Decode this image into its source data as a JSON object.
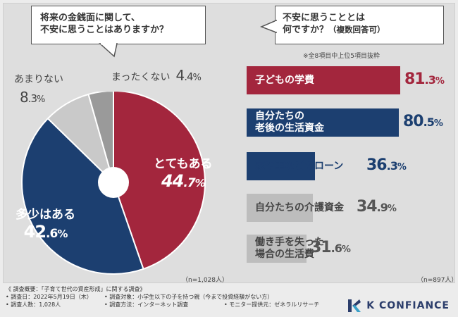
{
  "question_left": {
    "line1": "将来の金銭面に関して、",
    "line2": "不安に思うことはありますか？"
  },
  "question_right": {
    "line1": "不安に思うこととは",
    "line2_main": "何ですか？",
    "line2_sub": "（複数回答可）"
  },
  "note_top": "※全8項目中上位5項目抜粋",
  "chart_data": [
    {
      "type": "pie",
      "title": "将来の金銭面に関して、不安に思うことはありますか？",
      "slices": [
        {
          "label": "とてもある",
          "value": 44.7,
          "color": "#a3263d"
        },
        {
          "label": "多少はある",
          "value": 42.6,
          "color": "#1c3f70"
        },
        {
          "label": "あまりない",
          "value": 8.3,
          "color": "#c9c9c9"
        },
        {
          "label": "まったくない",
          "value": 4.4,
          "color": "#9a9a9a"
        }
      ],
      "sample": "（n=1,028人）"
    },
    {
      "type": "bar",
      "title": "不安に思うこととは何ですか？（複数回答可）",
      "categories": [
        "子どもの学費",
        "自分たちの老後の生活資金",
        "家や車などのローン",
        "自分たちの介護資金",
        "働き手を失った場合の生活費"
      ],
      "values": [
        81.3,
        80.5,
        36.3,
        34.9,
        31.6
      ],
      "sample": "（n=897人）"
    }
  ],
  "pie_labels": {
    "very": {
      "name": "とてもある",
      "int": "44",
      "dec": ".7",
      "pct": "%"
    },
    "some": {
      "name": "多少はある",
      "int": "42",
      "dec": ".6",
      "pct": "%"
    },
    "little": {
      "name": "あまりない",
      "int": "8",
      "dec": ".3",
      "pct": "%"
    },
    "none": {
      "name": "まったくない",
      "int": "4",
      "dec": ".4",
      "pct": "%"
    }
  },
  "bars": [
    {
      "line1": "子どもの学費",
      "line2": "",
      "int": "81",
      "dec": ".3",
      "pct": "%",
      "fill": "#a3263d",
      "text_color": "#ffffff",
      "value_color": "#a3263d"
    },
    {
      "line1": "自分たちの",
      "line2": "老後の生活資金",
      "int": "80",
      "dec": ".5",
      "pct": "%",
      "fill": "#1c3f70",
      "text_color": "#ffffff",
      "value_color": "#1c3f70"
    },
    {
      "line1": "家や車などのローン",
      "line2": "",
      "int": "36",
      "dec": ".3",
      "pct": "%",
      "fill": "#1c3f70",
      "text_color": "#1c3f70",
      "value_color": "#1c3f70"
    },
    {
      "line1": "自分たちの介護資金",
      "line2": "",
      "int": "34",
      "dec": ".9",
      "pct": "%",
      "fill": "#bdbdbd",
      "text_color": "#444444",
      "value_color": "#555555"
    },
    {
      "line1": "働き手を失った",
      "line2": "場合の生活費",
      "int": "31",
      "dec": ".6",
      "pct": "%",
      "fill": "#bdbdbd",
      "text_color": "#444444",
      "value_color": "#555555"
    }
  ],
  "n_left": "（n=1,028人）",
  "n_right": "（n=897人）",
  "footer": {
    "line0": "《 調査概要：「子育て世代の資産形成」に関する調査》",
    "date": "• 調査日：2022年5月19日（木）",
    "target": "• 調査対象：小学生以下の子を持つ親（今まで投資経験がない方）",
    "count": "• 調査人数：1,028人",
    "method": "• 調査方法：インターネット調査",
    "provider": "• モニター提供元：ゼネラルリサーチ"
  },
  "logo_text": "K CONFIANCE"
}
